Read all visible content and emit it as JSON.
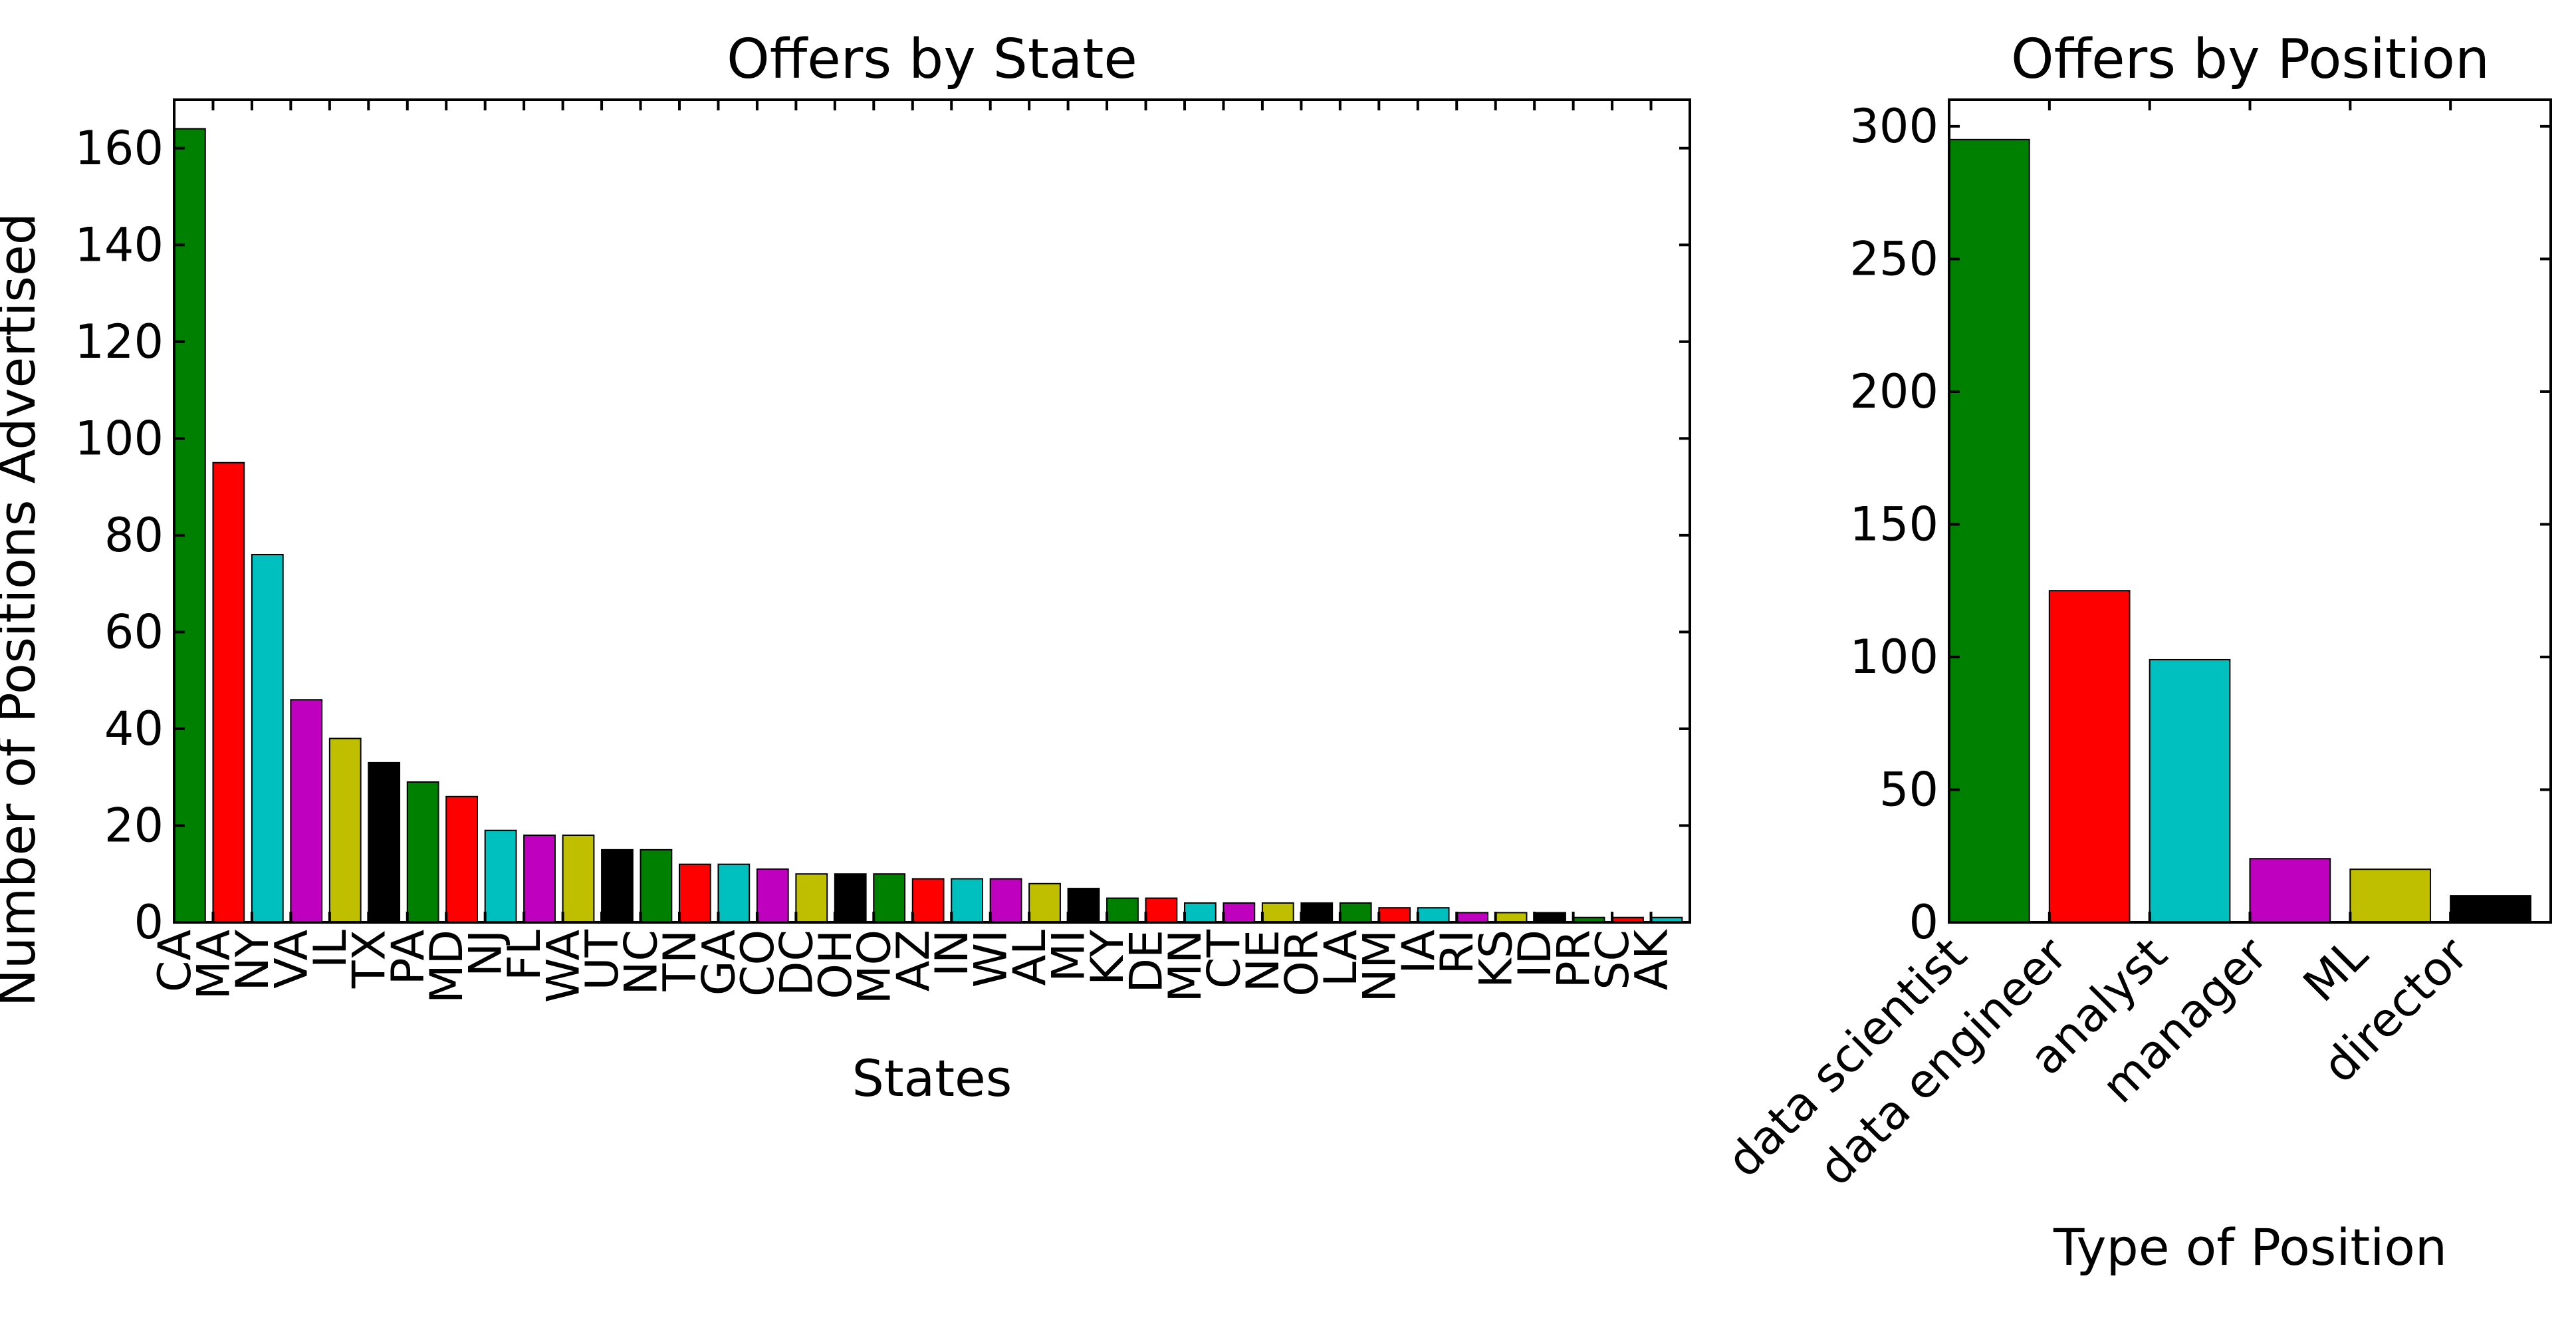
{
  "chart_data": [
    {
      "type": "bar",
      "title": "Offers by State",
      "xlabel": "States",
      "ylabel": "Number of Positions Advertised",
      "ylim": [
        0,
        170
      ],
      "yticks": [
        0,
        20,
        40,
        60,
        80,
        100,
        120,
        140,
        160
      ],
      "grid": false,
      "categories": [
        "CA",
        "MA",
        "NY",
        "VA",
        "IL",
        "TX",
        "PA",
        "MD",
        "NJ",
        "FL",
        "WA",
        "UT",
        "NC",
        "TN",
        "GA",
        "CO",
        "DC",
        "OH",
        "MO",
        "AZ",
        "IN",
        "WI",
        "AL",
        "MI",
        "KY",
        "DE",
        "MN",
        "CT",
        "NE",
        "OR",
        "LA",
        "NM",
        "IA",
        "RI",
        "KS",
        "ID",
        "PR",
        "SC",
        "AK"
      ],
      "values": [
        164,
        95,
        76,
        46,
        38,
        33,
        29,
        26,
        19,
        18,
        18,
        15,
        15,
        12,
        12,
        11,
        10,
        10,
        10,
        9,
        9,
        9,
        8,
        7,
        5,
        5,
        4,
        4,
        4,
        4,
        4,
        3,
        3,
        2,
        2,
        2,
        1,
        1,
        1
      ],
      "colors": [
        "#008000",
        "#ff0000",
        "#00bfbf",
        "#bf00bf",
        "#bfbf00",
        "#000000"
      ]
    },
    {
      "type": "bar",
      "title": "Offers by Position",
      "xlabel": "Type of Position",
      "ylabel": "",
      "ylim": [
        0,
        310
      ],
      "yticks": [
        0,
        50,
        100,
        150,
        200,
        250,
        300
      ],
      "grid": false,
      "categories": [
        "data scientist",
        "data engineer",
        "analyst",
        "manager",
        "ML",
        "director"
      ],
      "values": [
        295,
        125,
        99,
        24,
        20,
        10
      ],
      "colors": [
        "#008000",
        "#ff0000",
        "#00bfbf",
        "#bf00bf",
        "#bfbf00",
        "#000000"
      ]
    }
  ]
}
